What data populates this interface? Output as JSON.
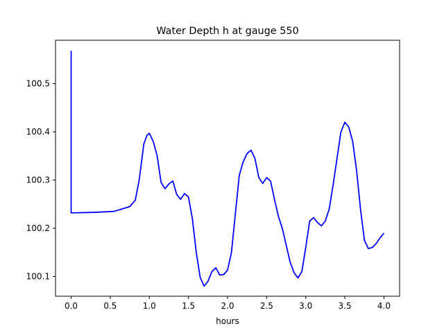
{
  "chart_data": {
    "type": "line",
    "title": "Water Depth h at gauge 550",
    "xlabel": "hours",
    "ylabel": "",
    "xlim": [
      -0.2,
      4.2
    ],
    "ylim": [
      100.059,
      100.59
    ],
    "xticks": [
      0.0,
      0.5,
      1.0,
      1.5,
      2.0,
      2.5,
      3.0,
      3.5,
      4.0
    ],
    "xtick_labels": [
      "0.0",
      "0.5",
      "1.0",
      "1.5",
      "2.0",
      "2.5",
      "3.0",
      "3.5",
      "4.0"
    ],
    "yticks": [
      100.1,
      100.2,
      100.3,
      100.4,
      100.5
    ],
    "ytick_labels": [
      "100.1",
      "100.2",
      "100.3",
      "100.4",
      "100.5"
    ],
    "grid": false,
    "series": [
      {
        "color": "#0000ff",
        "x": [
          0,
          0,
          0.001,
          0.05,
          0.3,
          0.55,
          0.65,
          0.75,
          0.82,
          0.87,
          0.93,
          0.97,
          1.0,
          1.05,
          1.1,
          1.15,
          1.2,
          1.25,
          1.3,
          1.35,
          1.4,
          1.45,
          1.5,
          1.55,
          1.6,
          1.65,
          1.7,
          1.75,
          1.8,
          1.85,
          1.9,
          1.95,
          2.0,
          2.05,
          2.1,
          2.15,
          2.2,
          2.25,
          2.3,
          2.35,
          2.4,
          2.45,
          2.5,
          2.55,
          2.6,
          2.65,
          2.7,
          2.75,
          2.8,
          2.85,
          2.9,
          2.95,
          3.0,
          3.05,
          3.1,
          3.15,
          3.2,
          3.25,
          3.3,
          3.35,
          3.4,
          3.45,
          3.5,
          3.55,
          3.6,
          3.65,
          3.7,
          3.75,
          3.8,
          3.85,
          3.9,
          3.95,
          4.0
        ],
        "y": [
          100.568,
          100.232,
          100.232,
          100.232,
          100.233,
          100.235,
          100.24,
          100.245,
          100.258,
          100.3,
          100.375,
          100.393,
          100.397,
          100.38,
          100.35,
          100.295,
          100.282,
          100.292,
          100.298,
          100.27,
          100.26,
          100.272,
          100.265,
          100.22,
          100.15,
          100.098,
          100.08,
          100.09,
          100.11,
          100.118,
          100.103,
          100.104,
          100.113,
          100.15,
          100.23,
          100.31,
          100.338,
          100.355,
          100.362,
          100.345,
          100.305,
          100.293,
          100.305,
          100.298,
          100.26,
          100.225,
          100.2,
          100.165,
          100.13,
          100.108,
          100.097,
          100.11,
          100.16,
          100.215,
          100.222,
          100.212,
          100.205,
          100.215,
          100.24,
          100.29,
          100.345,
          100.4,
          100.42,
          100.41,
          100.38,
          100.32,
          100.24,
          100.175,
          100.158,
          100.16,
          100.168,
          100.18,
          100.19
        ]
      }
    ]
  }
}
